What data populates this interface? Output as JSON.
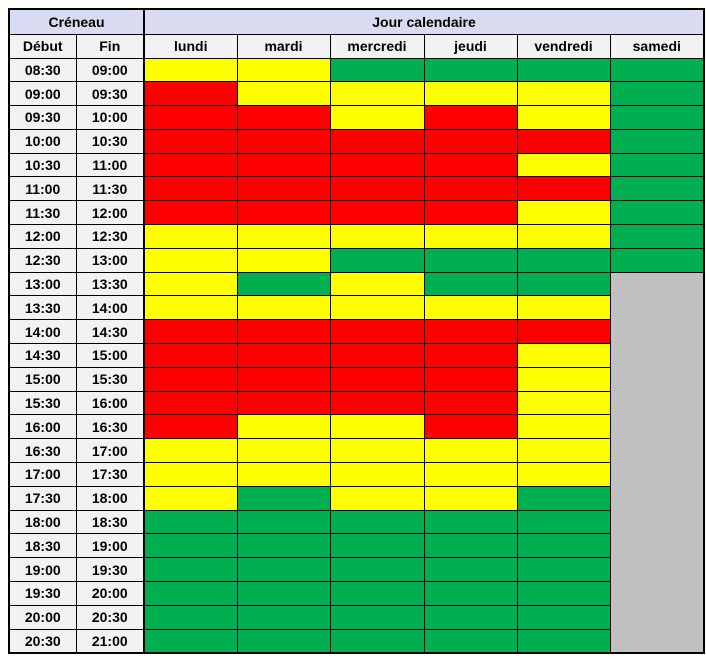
{
  "table": {
    "header": {
      "creneau": "Créneau",
      "jour_calendaire": "Jour calendaire",
      "debut": "Début",
      "fin": "Fin",
      "days": [
        "lundi",
        "mardi",
        "mercredi",
        "jeudi",
        "vendredi",
        "samedi"
      ]
    },
    "colors": {
      "red": "#FF0000",
      "yellow": "#FFFF00",
      "green": "#00B050",
      "gray": "#C0C0C0",
      "header_band": "#D9DCF0",
      "subheader": "#F2F2F2",
      "grid_line": "#000000"
    },
    "rows": [
      {
        "debut": "08:30",
        "fin": "09:00",
        "slots": [
          "yellow",
          "yellow",
          "green",
          "green",
          "green",
          "green"
        ]
      },
      {
        "debut": "09:00",
        "fin": "09:30",
        "slots": [
          "red",
          "yellow",
          "yellow",
          "yellow",
          "yellow",
          "green"
        ]
      },
      {
        "debut": "09:30",
        "fin": "10:00",
        "slots": [
          "red",
          "red",
          "yellow",
          "red",
          "yellow",
          "green"
        ]
      },
      {
        "debut": "10:00",
        "fin": "10:30",
        "slots": [
          "red",
          "red",
          "red",
          "red",
          "red",
          "green"
        ]
      },
      {
        "debut": "10:30",
        "fin": "11:00",
        "slots": [
          "red",
          "red",
          "red",
          "red",
          "yellow",
          "green"
        ]
      },
      {
        "debut": "11:00",
        "fin": "11:30",
        "slots": [
          "red",
          "red",
          "red",
          "red",
          "red",
          "green"
        ]
      },
      {
        "debut": "11:30",
        "fin": "12:00",
        "slots": [
          "red",
          "red",
          "red",
          "red",
          "yellow",
          "green"
        ]
      },
      {
        "debut": "12:00",
        "fin": "12:30",
        "slots": [
          "yellow",
          "yellow",
          "yellow",
          "yellow",
          "yellow",
          "green"
        ]
      },
      {
        "debut": "12:30",
        "fin": "13:00",
        "slots": [
          "yellow",
          "yellow",
          "green",
          "green",
          "green",
          "green"
        ]
      },
      {
        "debut": "13:00",
        "fin": "13:30",
        "slots": [
          "yellow",
          "green",
          "yellow",
          "green",
          "green",
          "gray"
        ]
      },
      {
        "debut": "13:30",
        "fin": "14:00",
        "slots": [
          "yellow",
          "yellow",
          "yellow",
          "yellow",
          "yellow",
          "gray"
        ]
      },
      {
        "debut": "14:00",
        "fin": "14:30",
        "slots": [
          "red",
          "red",
          "red",
          "red",
          "red",
          "gray"
        ]
      },
      {
        "debut": "14:30",
        "fin": "15:00",
        "slots": [
          "red",
          "red",
          "red",
          "red",
          "yellow",
          "gray"
        ]
      },
      {
        "debut": "15:00",
        "fin": "15:30",
        "slots": [
          "red",
          "red",
          "red",
          "red",
          "yellow",
          "gray"
        ]
      },
      {
        "debut": "15:30",
        "fin": "16:00",
        "slots": [
          "red",
          "red",
          "red",
          "red",
          "yellow",
          "gray"
        ]
      },
      {
        "debut": "16:00",
        "fin": "16:30",
        "slots": [
          "red",
          "yellow",
          "yellow",
          "red",
          "yellow",
          "gray"
        ]
      },
      {
        "debut": "16:30",
        "fin": "17:00",
        "slots": [
          "yellow",
          "yellow",
          "yellow",
          "yellow",
          "yellow",
          "gray"
        ]
      },
      {
        "debut": "17:00",
        "fin": "17:30",
        "slots": [
          "yellow",
          "yellow",
          "yellow",
          "yellow",
          "yellow",
          "gray"
        ]
      },
      {
        "debut": "17:30",
        "fin": "18:00",
        "slots": [
          "yellow",
          "green",
          "yellow",
          "yellow",
          "green",
          "gray"
        ]
      },
      {
        "debut": "18:00",
        "fin": "18:30",
        "slots": [
          "green",
          "green",
          "green",
          "green",
          "green",
          "gray"
        ]
      },
      {
        "debut": "18:30",
        "fin": "19:00",
        "slots": [
          "green",
          "green",
          "green",
          "green",
          "green",
          "gray"
        ]
      },
      {
        "debut": "19:00",
        "fin": "19:30",
        "slots": [
          "green",
          "green",
          "green",
          "green",
          "green",
          "gray"
        ]
      },
      {
        "debut": "19:30",
        "fin": "20:00",
        "slots": [
          "green",
          "green",
          "green",
          "green",
          "green",
          "gray"
        ]
      },
      {
        "debut": "20:00",
        "fin": "20:30",
        "slots": [
          "green",
          "green",
          "green",
          "green",
          "green",
          "gray"
        ]
      },
      {
        "debut": "20:30",
        "fin": "21:00",
        "slots": [
          "green",
          "green",
          "green",
          "green",
          "green",
          "gray"
        ]
      }
    ]
  }
}
